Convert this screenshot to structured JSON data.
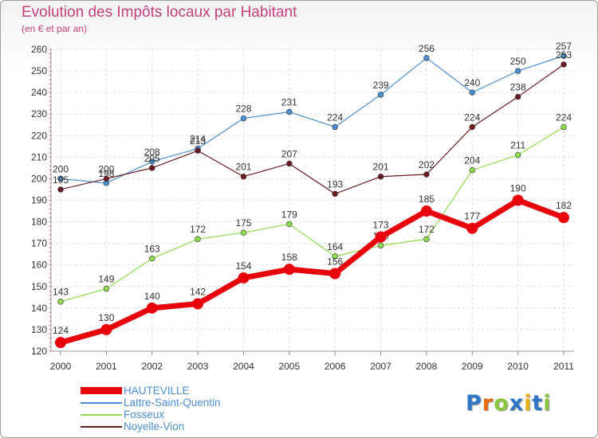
{
  "header": {
    "title": "Evolution des Impôts locaux par Habitant",
    "subtitle": "(en € et par an)"
  },
  "chart_data": {
    "type": "line",
    "x": [
      "2000",
      "2001",
      "2002",
      "2003",
      "2004",
      "2005",
      "2006",
      "2007",
      "2008",
      "2009",
      "2010",
      "2011"
    ],
    "ylim": [
      120,
      260
    ],
    "yticks": [
      "120",
      "130",
      "140",
      "150",
      "160",
      "170",
      "180",
      "190",
      "200",
      "210",
      "220",
      "230",
      "240",
      "250",
      "260"
    ],
    "grid": true,
    "legend_position": "bottom-left",
    "series": [
      {
        "name": "HAUTEVILLE",
        "color": "#e8000b",
        "values": [
          124,
          130,
          140,
          142,
          154,
          158,
          156,
          173,
          185,
          177,
          190,
          182
        ]
      },
      {
        "name": "Lattre-Saint-Quentin",
        "color": "#4a8fd1",
        "values": [
          200,
          198,
          208,
          214,
          228,
          231,
          224,
          239,
          256,
          240,
          250,
          257
        ]
      },
      {
        "name": "Fosseux",
        "color": "#8fdc4d",
        "values": [
          143,
          149,
          163,
          172,
          175,
          179,
          164,
          169,
          172,
          204,
          211,
          224
        ]
      },
      {
        "name": "Noyelle-Vion",
        "color": "#6b1a22",
        "values": [
          195,
          200,
          205,
          213,
          201,
          207,
          193,
          201,
          202,
          224,
          238,
          253
        ]
      }
    ]
  },
  "logo": {
    "letters": [
      "P",
      "r",
      "o",
      "x",
      "i",
      "t",
      "i"
    ],
    "colors": [
      "#2f76c8",
      "#e86a10",
      "#8bc53f",
      "#2f76c8",
      "#e8b010",
      "#2f76c8",
      "#8bc53f"
    ]
  }
}
